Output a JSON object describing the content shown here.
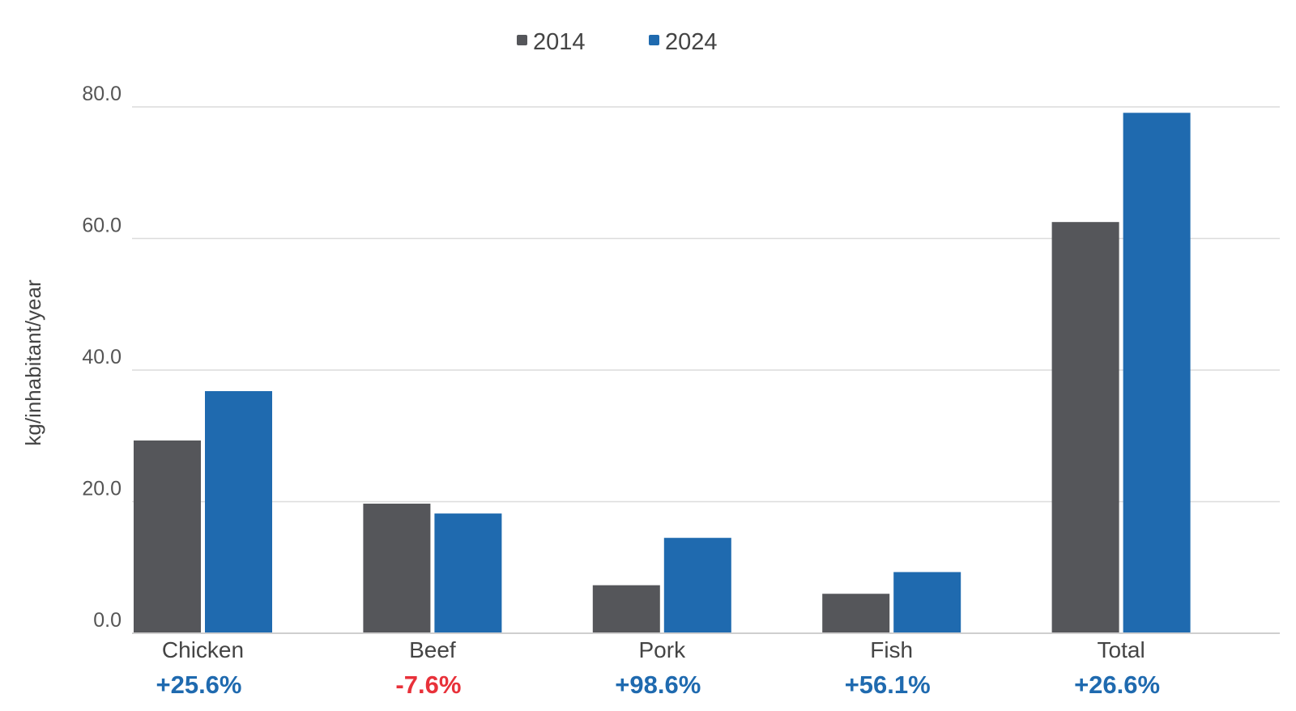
{
  "chart_data": {
    "type": "bar",
    "ylabel": "kg/inhabitant/year",
    "ylim": [
      0,
      80
    ],
    "yticks": [
      0,
      20,
      40,
      60,
      80
    ],
    "ytick_labels": [
      "0.0",
      "20.0",
      "40.0",
      "60.0",
      "80.0"
    ],
    "grid": true,
    "legend_position": "top-center",
    "categories": [
      "Chicken",
      "Beef",
      "Pork",
      "Fish",
      "Total"
    ],
    "series": [
      {
        "name": "2014",
        "color": "#55565a",
        "values": [
          29.3,
          19.7,
          7.3,
          6.0,
          62.5
        ]
      },
      {
        "name": "2024",
        "color": "#1f6aaf",
        "values": [
          36.8,
          18.2,
          14.5,
          9.3,
          79.1
        ]
      }
    ],
    "annotations": [
      {
        "category": "Chicken",
        "text": "+25.6%",
        "color": "#1f6aaf"
      },
      {
        "category": "Beef",
        "text": "-7.6%",
        "color": "#e8313a"
      },
      {
        "category": "Pork",
        "text": "+98.6%",
        "color": "#1f6aaf"
      },
      {
        "category": "Fish",
        "text": "+56.1%",
        "color": "#1f6aaf"
      },
      {
        "category": "Total",
        "text": "+26.6%",
        "color": "#1f6aaf"
      }
    ]
  }
}
